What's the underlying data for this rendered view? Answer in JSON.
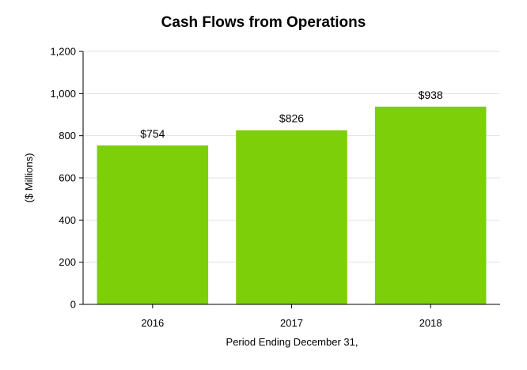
{
  "chart_data": {
    "type": "bar",
    "title": "Cash Flows from Operations",
    "xlabel": "Period Ending December 31,",
    "ylabel": "($ Millions)",
    "categories": [
      "2016",
      "2017",
      "2018"
    ],
    "values": [
      754,
      826,
      938
    ],
    "data_labels": [
      "$754",
      "$826",
      "$938"
    ],
    "ylim": [
      0,
      1200
    ],
    "yticks": [
      0,
      200,
      400,
      600,
      800,
      1000,
      1200
    ],
    "ytick_labels": [
      "0",
      "200",
      "400",
      "600",
      "800",
      "1,000",
      "1,200"
    ],
    "bar_color": "#7dcf0a",
    "grid": true,
    "legend": "none"
  }
}
